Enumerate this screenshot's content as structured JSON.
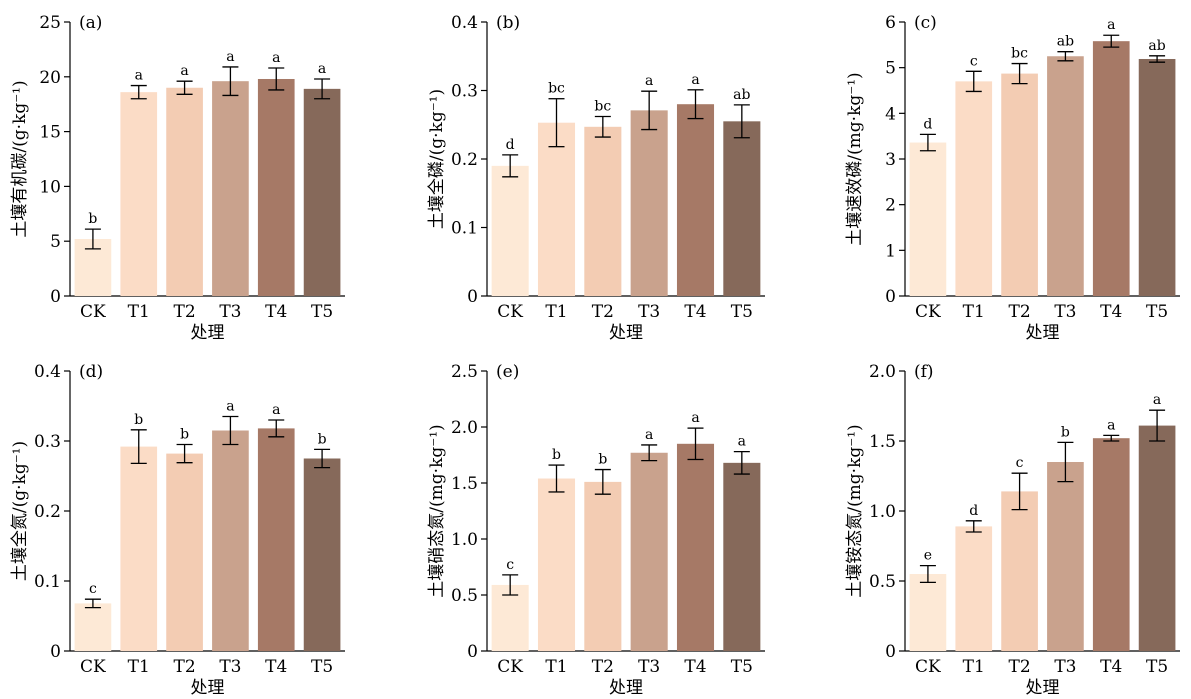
{
  "colors": [
    "#fde9d6",
    "#fbdcc6",
    "#f3ccb3",
    "#c9a28d",
    "#a67966",
    "#86695a"
  ],
  "chart_data": [
    {
      "type": "bar",
      "panel": "(a)",
      "categories": [
        "CK",
        "T1",
        "T2",
        "T3",
        "T4",
        "T5"
      ],
      "values": [
        5.2,
        18.6,
        19.0,
        19.6,
        19.8,
        18.9
      ],
      "errors": [
        0.9,
        0.6,
        0.6,
        1.3,
        1.0,
        0.9
      ],
      "sig": [
        "b",
        "a",
        "a",
        "a",
        "a",
        "a"
      ],
      "xlabel": "处理",
      "ylabel": "土壤有机碳/(g·kg⁻¹)",
      "ylim": [
        0,
        25
      ],
      "yticks": [
        "0",
        "5",
        "10",
        "15",
        "20",
        "25"
      ]
    },
    {
      "type": "bar",
      "panel": "(b)",
      "categories": [
        "CK",
        "T1",
        "T2",
        "T3",
        "T4",
        "T5"
      ],
      "values": [
        0.19,
        0.253,
        0.247,
        0.271,
        0.28,
        0.255
      ],
      "errors": [
        0.016,
        0.035,
        0.015,
        0.028,
        0.021,
        0.024
      ],
      "sig": [
        "d",
        "bc",
        "bc",
        "a",
        "a",
        "ab"
      ],
      "xlabel": "处理",
      "ylabel": "土壤全磷/(g·kg⁻¹)",
      "ylim": [
        0,
        0.4
      ],
      "yticks": [
        "0",
        "0.1",
        "0.2",
        "0.3",
        "0.4"
      ]
    },
    {
      "type": "bar",
      "panel": "(c)",
      "categories": [
        "CK",
        "T1",
        "T2",
        "T3",
        "T4",
        "T5"
      ],
      "values": [
        3.36,
        4.7,
        4.87,
        5.25,
        5.58,
        5.19
      ],
      "errors": [
        0.18,
        0.22,
        0.22,
        0.1,
        0.13,
        0.07
      ],
      "sig": [
        "d",
        "c",
        "bc",
        "ab",
        "a",
        "ab"
      ],
      "xlabel": "处理",
      "ylabel": "土壤速效磷/(mg·kg⁻¹)",
      "ylim": [
        0,
        6
      ],
      "yticks": [
        "0",
        "1",
        "2",
        "3",
        "4",
        "5",
        "6"
      ]
    },
    {
      "type": "bar",
      "panel": "(d)",
      "categories": [
        "CK",
        "T1",
        "T2",
        "T3",
        "T4",
        "T5"
      ],
      "values": [
        0.068,
        0.292,
        0.282,
        0.315,
        0.318,
        0.275
      ],
      "errors": [
        0.006,
        0.024,
        0.013,
        0.02,
        0.012,
        0.013
      ],
      "sig": [
        "c",
        "b",
        "b",
        "a",
        "a",
        "b"
      ],
      "xlabel": "处理",
      "ylabel": "土壤全氮/(g·kg⁻¹)",
      "ylim": [
        0,
        0.4
      ],
      "yticks": [
        "0",
        "0.1",
        "0.2",
        "0.3",
        "0.4"
      ]
    },
    {
      "type": "bar",
      "panel": "(e)",
      "categories": [
        "CK",
        "T1",
        "T2",
        "T3",
        "T4",
        "T5"
      ],
      "values": [
        0.59,
        1.54,
        1.51,
        1.77,
        1.85,
        1.68
      ],
      "errors": [
        0.09,
        0.12,
        0.11,
        0.07,
        0.14,
        0.1
      ],
      "sig": [
        "c",
        "b",
        "b",
        "a",
        "a",
        "a"
      ],
      "xlabel": "处理",
      "ylabel": "土壤硝态氮/(mg·kg⁻¹)",
      "ylim": [
        0,
        2.5
      ],
      "yticks": [
        "0",
        "0.5",
        "1.0",
        "1.5",
        "2.0",
        "2.5"
      ]
    },
    {
      "type": "bar",
      "panel": "(f)",
      "categories": [
        "CK",
        "T1",
        "T2",
        "T3",
        "T4",
        "T5"
      ],
      "values": [
        0.55,
        0.89,
        1.14,
        1.35,
        1.52,
        1.61
      ],
      "errors": [
        0.06,
        0.04,
        0.13,
        0.14,
        0.02,
        0.11
      ],
      "sig": [
        "e",
        "d",
        "c",
        "b",
        "a",
        "a"
      ],
      "xlabel": "处理",
      "ylabel": "土壤铵态氮/(mg·kg⁻¹)",
      "ylim": [
        0,
        2.0
      ],
      "yticks": [
        "0",
        "0.5",
        "1.0",
        "1.5",
        "2.0"
      ]
    }
  ]
}
